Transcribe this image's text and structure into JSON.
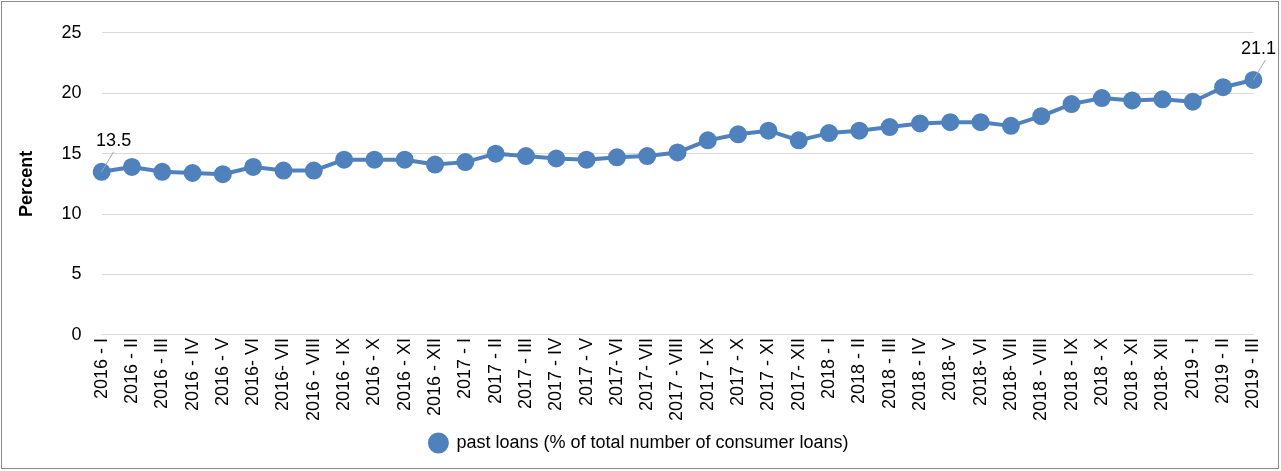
{
  "chart_data": {
    "type": "line",
    "ylabel": "Percent",
    "categories": [
      "2016 - I",
      "2016 - II",
      "2016 - III",
      "2016 - IV",
      "2016 - V",
      "2016- VI",
      "2016- VII",
      "2016 - VIII",
      "2016 - IX",
      "2016 - X",
      "2016 - XI",
      "2016 - XII",
      "2017 - I",
      "2017 - II",
      "2017 - III",
      "2017 - IV",
      "2017 - V",
      "2017- VI",
      "2017- VII",
      "2017 - VIII",
      "2017 - IX",
      "2017 - X",
      "2017 - XI",
      "2017- XII",
      "2018 - I",
      "2018 - II",
      "2018 - III",
      "2018 - IV",
      "2018- V",
      "2018- VI",
      "2018- VII",
      "2018 - VIII",
      "2018 - IX",
      "2018 - X",
      "2018 - XI",
      "2018- XII",
      "2019 - I",
      "2019 - II",
      "2019 - III"
    ],
    "series": [
      {
        "name": "past loans (% of total number of consumer loans)",
        "color": "#4f81bd",
        "values": [
          13.5,
          13.9,
          13.5,
          13.4,
          13.3,
          13.9,
          13.6,
          13.6,
          14.5,
          14.5,
          14.5,
          14.1,
          14.3,
          15.0,
          14.8,
          14.6,
          14.5,
          14.7,
          14.8,
          15.1,
          16.1,
          16.6,
          16.9,
          16.1,
          16.7,
          16.9,
          17.2,
          17.5,
          17.6,
          17.6,
          17.3,
          18.1,
          19.1,
          19.6,
          19.4,
          19.5,
          19.3,
          20.5,
          21.1
        ],
        "value_labels": [
          "13.5",
          null,
          null,
          null,
          null,
          null,
          null,
          null,
          null,
          null,
          null,
          null,
          null,
          null,
          null,
          null,
          null,
          null,
          null,
          null,
          null,
          null,
          null,
          null,
          null,
          null,
          null,
          null,
          null,
          null,
          null,
          null,
          null,
          null,
          null,
          null,
          null,
          null,
          "21.1"
        ]
      }
    ],
    "ylim": [
      0,
      25
    ],
    "yticks": [
      0,
      5,
      10,
      15,
      20,
      25
    ],
    "grid": "y",
    "legend": "bottom",
    "marker": "circle",
    "line_style": "solid"
  }
}
